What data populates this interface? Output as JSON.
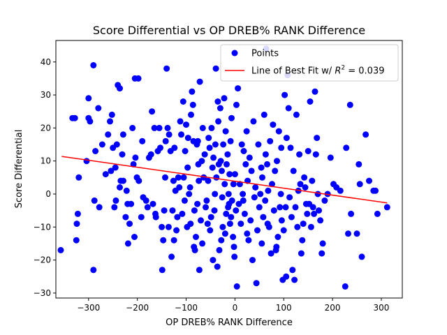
{
  "chart_data": {
    "type": "scatter",
    "title": "Score Differential vs OP DREB% RANK Difference",
    "xlabel": "OP DREB% RANK Difference",
    "ylabel": "Score Differential",
    "xlim": [
      -367,
      343
    ],
    "ylim": [
      -31.5,
      46.5
    ],
    "xticks": [
      -300,
      -200,
      -100,
      0,
      100,
      200,
      300
    ],
    "yticks": [
      -30,
      -20,
      -10,
      0,
      10,
      20,
      30,
      40
    ],
    "tick_labels_x": [
      "−300",
      "−200",
      "−100",
      "0",
      "100",
      "200",
      "300"
    ],
    "tick_labels_y": [
      "−30",
      "−20",
      "−10",
      "0",
      "10",
      "20",
      "30",
      "40"
    ],
    "grid": false,
    "legend_position": "top-right",
    "series": [
      {
        "name": "Points",
        "kind": "scatter",
        "color": "#0000ff",
        "points": [
          [
            -357,
            -17
          ],
          [
            -333,
            23
          ],
          [
            -328,
            23
          ],
          [
            -325,
            -14
          ],
          [
            -324,
            -9
          ],
          [
            -322,
            -6
          ],
          [
            -320,
            5
          ],
          [
            -304,
            10
          ],
          [
            -300,
            29
          ],
          [
            -300,
            23
          ],
          [
            -297,
            22
          ],
          [
            -290,
            39
          ],
          [
            -288,
            -2
          ],
          [
            -290,
            -23
          ],
          [
            -286,
            13
          ],
          [
            -280,
            26
          ],
          [
            -278,
            -4
          ],
          [
            -272,
            15
          ],
          [
            -265,
            6
          ],
          [
            -260,
            18
          ],
          [
            -256,
            22
          ],
          [
            -254,
            7
          ],
          [
            -252,
            24
          ],
          [
            -250,
            14
          ],
          [
            -247,
            -4
          ],
          [
            -245,
            8
          ],
          [
            -244,
            -2
          ],
          [
            -242,
            15
          ],
          [
            -240,
            33
          ],
          [
            -236,
            2
          ],
          [
            -236,
            32
          ],
          [
            -234,
            4
          ],
          [
            -231,
            12
          ],
          [
            -229,
            18
          ],
          [
            -229,
            4
          ],
          [
            -224,
            -7
          ],
          [
            -222,
            1
          ],
          [
            -220,
            -3
          ],
          [
            -219,
            -15
          ],
          [
            -216,
            -9
          ],
          [
            -213,
            -3
          ],
          [
            -210,
            20
          ],
          [
            -208,
            9
          ],
          [
            -206,
            -13
          ],
          [
            -205,
            35
          ],
          [
            -204,
            11
          ],
          [
            -201,
            5
          ],
          [
            -198,
            35
          ],
          [
            -197,
            4
          ],
          [
            -192,
            -7
          ],
          [
            -190,
            16
          ],
          [
            -188,
            -1
          ],
          [
            -182,
            -2
          ],
          [
            -179,
            -4
          ],
          [
            -176,
            11
          ],
          [
            -172,
            12
          ],
          [
            -170,
            25
          ],
          [
            -168,
            -3
          ],
          [
            -165,
            20
          ],
          [
            -163,
            -6
          ],
          [
            -162,
            -7
          ],
          [
            -158,
            13
          ],
          [
            -155,
            20
          ],
          [
            -153,
            14
          ],
          [
            -150,
            -10
          ],
          [
            -149,
            -23
          ],
          [
            -147,
            -14
          ],
          [
            -145,
            -5
          ],
          [
            -143,
            5
          ],
          [
            -142,
            16
          ],
          [
            -140,
            38
          ],
          [
            -138,
            20
          ],
          [
            -136,
            -10
          ],
          [
            -135,
            18
          ],
          [
            -132,
            13
          ],
          [
            -130,
            -19
          ],
          [
            -128,
            -5
          ],
          [
            -126,
            4
          ],
          [
            -125,
            -14
          ],
          [
            -124,
            14
          ],
          [
            -122,
            1
          ],
          [
            -120,
            -11
          ],
          [
            -118,
            -7
          ],
          [
            -116,
            5
          ],
          [
            -114,
            2
          ],
          [
            -112,
            22
          ],
          [
            -110,
            18
          ],
          [
            -108,
            -6
          ],
          [
            -106,
            28
          ],
          [
            -105,
            5
          ],
          [
            -103,
            -2
          ],
          [
            -102,
            13
          ],
          [
            -100,
            21
          ],
          [
            -98,
            -10
          ],
          [
            -97,
            8
          ],
          [
            -96,
            17
          ],
          [
            -94,
            0
          ],
          [
            -92,
            2
          ],
          [
            -91,
            -9
          ],
          [
            -90,
            24
          ],
          [
            -88,
            31
          ],
          [
            -86,
            27
          ],
          [
            -85,
            16
          ],
          [
            -84,
            -16
          ],
          [
            -83,
            -5
          ],
          [
            -82,
            -17
          ],
          [
            -80,
            -13
          ],
          [
            -78,
            15
          ],
          [
            -77,
            -3
          ],
          [
            -76,
            16
          ],
          [
            -75,
            9
          ],
          [
            -74,
            4
          ],
          [
            -73,
            -23
          ],
          [
            -72,
            34
          ],
          [
            -70,
            -8
          ],
          [
            -68,
            10
          ],
          [
            -67,
            -15
          ],
          [
            -66,
            20
          ],
          [
            -64,
            5
          ],
          [
            -62,
            12
          ],
          [
            -60,
            -4
          ],
          [
            -58,
            -2
          ],
          [
            -56,
            -9
          ],
          [
            -55,
            4
          ],
          [
            -54,
            17
          ],
          [
            -52,
            14
          ],
          [
            -51,
            -11
          ],
          [
            -49,
            -7
          ],
          [
            -48,
            20
          ],
          [
            -46,
            8
          ],
          [
            -45,
            -20
          ],
          [
            -44,
            11
          ],
          [
            -42,
            -5
          ],
          [
            -41,
            0
          ],
          [
            -40,
            15
          ],
          [
            -39,
            38
          ],
          [
            -38,
            5
          ],
          [
            -36,
            -22
          ],
          [
            -35,
            28
          ],
          [
            -34,
            22
          ],
          [
            -33,
            9
          ],
          [
            -32,
            -17
          ],
          [
            -30,
            26
          ],
          [
            -29,
            10
          ],
          [
            -28,
            -14
          ],
          [
            -27,
            7
          ],
          [
            -26,
            -1
          ],
          [
            -25,
            -10
          ],
          [
            -24,
            15
          ],
          [
            -22,
            29
          ],
          [
            -21,
            3
          ],
          [
            -20,
            -12
          ],
          [
            -19,
            19
          ],
          [
            -18,
            -6
          ],
          [
            -17,
            9
          ],
          [
            -15,
            12
          ],
          [
            -14,
            -4
          ],
          [
            -13,
            0
          ],
          [
            -12,
            -3
          ],
          [
            -11,
            6
          ],
          [
            -10,
            -9
          ],
          [
            -9,
            16
          ],
          [
            -8,
            -7
          ],
          [
            -7,
            23
          ],
          [
            -6,
            -2
          ],
          [
            -4,
            -13
          ],
          [
            -3,
            3
          ],
          [
            -2,
            -16
          ],
          [
            -1,
            -19
          ],
          [
            0,
            6
          ],
          [
            2,
            -5
          ],
          [
            3,
            27
          ],
          [
            4,
            -28
          ],
          [
            6,
            32
          ],
          [
            8,
            -3
          ],
          [
            10,
            3
          ],
          [
            12,
            -9
          ],
          [
            14,
            15
          ],
          [
            16,
            0
          ],
          [
            17,
            -2
          ],
          [
            18,
            13
          ],
          [
            20,
            -6
          ],
          [
            22,
            9
          ],
          [
            24,
            19
          ],
          [
            25,
            -12
          ],
          [
            26,
            4
          ],
          [
            28,
            -14
          ],
          [
            30,
            11
          ],
          [
            32,
            -8
          ],
          [
            34,
            7
          ],
          [
            36,
            -20
          ],
          [
            38,
            22
          ],
          [
            40,
            -1
          ],
          [
            42,
            2
          ],
          [
            44,
            -27
          ],
          [
            46,
            -11
          ],
          [
            48,
            15
          ],
          [
            50,
            -4
          ],
          [
            52,
            0
          ],
          [
            54,
            8
          ],
          [
            55,
            -15
          ],
          [
            56,
            5
          ],
          [
            58,
            -7
          ],
          [
            60,
            24
          ],
          [
            62,
            -2
          ],
          [
            63,
            12
          ],
          [
            64,
            44
          ],
          [
            66,
            9
          ],
          [
            67,
            -9
          ],
          [
            68,
            1
          ],
          [
            70,
            -10
          ],
          [
            72,
            16
          ],
          [
            74,
            -18
          ],
          [
            76,
            3
          ],
          [
            78,
            21
          ],
          [
            80,
            -5
          ],
          [
            82,
            7
          ],
          [
            84,
            -17
          ],
          [
            85,
            -16
          ],
          [
            86,
            10
          ],
          [
            88,
            -13
          ],
          [
            90,
            19
          ],
          [
            92,
            -4
          ],
          [
            94,
            0
          ],
          [
            95,
            14
          ],
          [
            96,
            -8
          ],
          [
            98,
            -26
          ],
          [
            100,
            -11
          ],
          [
            102,
            30
          ],
          [
            104,
            -4
          ],
          [
            105,
            -25
          ],
          [
            106,
            17
          ],
          [
            108,
            36
          ],
          [
            110,
            26
          ],
          [
            112,
            -1
          ],
          [
            114,
            14
          ],
          [
            116,
            -7
          ],
          [
            118,
            -23
          ],
          [
            120,
            7
          ],
          [
            122,
            -26
          ],
          [
            124,
            -4
          ],
          [
            126,
            24
          ],
          [
            128,
            -10
          ],
          [
            130,
            1
          ],
          [
            132,
            12
          ],
          [
            134,
            3
          ],
          [
            136,
            -18
          ],
          [
            138,
            -14
          ],
          [
            140,
            -9
          ],
          [
            142,
            5
          ],
          [
            144,
            2
          ],
          [
            146,
            -3
          ],
          [
            148,
            -6
          ],
          [
            150,
            13
          ],
          [
            152,
            -3
          ],
          [
            154,
            28
          ],
          [
            156,
            -10
          ],
          [
            158,
            4
          ],
          [
            160,
            -4
          ],
          [
            162,
            -6
          ],
          [
            164,
            31
          ],
          [
            166,
            12
          ],
          [
            168,
            17
          ],
          [
            170,
            0
          ],
          [
            172,
            -5
          ],
          [
            175,
            -8
          ],
          [
            178,
            -18
          ],
          [
            180,
            -15
          ],
          [
            184,
            -2
          ],
          [
            190,
            0
          ],
          [
            196,
            11
          ],
          [
            202,
            3
          ],
          [
            208,
            2
          ],
          [
            216,
            1
          ],
          [
            226,
            -28
          ],
          [
            228,
            14
          ],
          [
            232,
            -12
          ],
          [
            236,
            27
          ],
          [
            238,
            -6
          ],
          [
            250,
            -12
          ],
          [
            254,
            9
          ],
          [
            256,
            3
          ],
          [
            260,
            -19
          ],
          [
            268,
            18
          ],
          [
            275,
            4
          ],
          [
            284,
            1
          ],
          [
            288,
            1
          ],
          [
            292,
            -6
          ],
          [
            312,
            -4
          ]
        ]
      },
      {
        "name": "Line of Best Fit w/ R² = 0.039",
        "kind": "line",
        "color": "#ff0000",
        "x": [
          -355,
          312
        ],
        "y": [
          11.4,
          -2.7
        ]
      }
    ],
    "legend": [
      {
        "label": "Points",
        "marker": "circle",
        "color": "#0000ff"
      },
      {
        "label_prefix": "Line of Best Fit w/ ",
        "label_math_var": "R",
        "label_math_sup": "2",
        "label_math_rest": " = 0.039",
        "marker": "line",
        "color": "#ff0000"
      }
    ]
  }
}
